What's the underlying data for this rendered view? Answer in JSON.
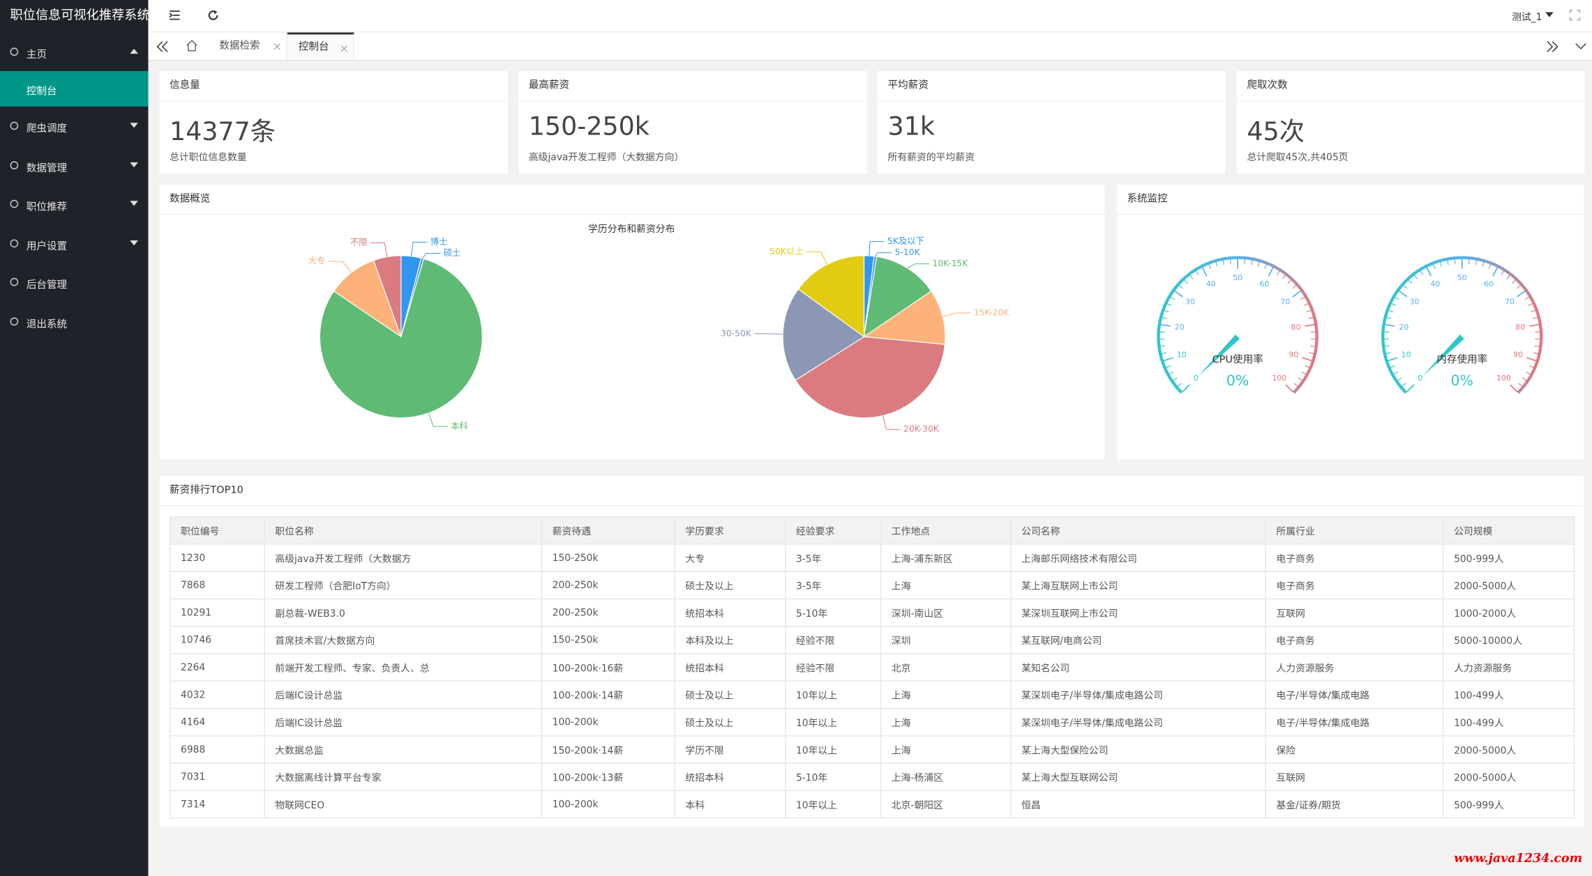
{
  "sidebar": {
    "title": "职位信息可视化推荐系统",
    "menu": [
      {
        "label": "主页",
        "has_submenu": true,
        "children": [
          "控制台"
        ]
      },
      {
        "label": "爬虫调度",
        "has_submenu": true
      },
      {
        "label": "数据管理",
        "has_submenu": true
      },
      {
        "label": "职位推荐",
        "has_submenu": true
      },
      {
        "label": "用户设置",
        "has_submenu": true
      },
      {
        "label": "后台管理",
        "has_submenu": false
      },
      {
        "label": "退出系统",
        "has_submenu": false
      }
    ]
  },
  "topbar": {
    "user": "测试_1"
  },
  "tabs": [
    {
      "label": "数据检索",
      "active": false
    },
    {
      "label": "控制台",
      "active": true
    }
  ],
  "cards": [
    {
      "title": "信息量",
      "value": "14377条",
      "note": "总计职位信息数量"
    },
    {
      "title": "最高薪资",
      "value": "150-250k",
      "note": "高级java开发工程师（大数据方向）"
    },
    {
      "title": "平均薪资",
      "value": "31k",
      "note": "所有薪资的平均薪资"
    },
    {
      "title": "爬取次数",
      "value": "45次",
      "note": "总计爬取45次,共405页"
    }
  ],
  "overview": {
    "title": "数据概览"
  },
  "monitor": {
    "title": "系统监控"
  },
  "chart_data": [
    {
      "type": "pie",
      "title": "学历分布和薪资分布",
      "categories": [
        "博士",
        "硕士",
        "本科",
        "大专",
        "不限"
      ],
      "values": [
        4,
        0.5,
        80,
        10,
        5.5
      ],
      "colors": [
        "#3196f0",
        "#3a9ad6",
        "#5fba74",
        "#fdb27a",
        "#da7b7f"
      ]
    },
    {
      "type": "pie",
      "categories": [
        "5K及以下",
        "5-10K",
        "10K-15K",
        "15K-20K",
        "20K-30K",
        "30-50K",
        "50K以上"
      ],
      "values": [
        2,
        0.5,
        13,
        11,
        39.5,
        19,
        15
      ],
      "colors": [
        "#3196f0",
        "#3a9ad6",
        "#5fba74",
        "#fdb27a",
        "#da7b7f",
        "#8b97b4",
        "#e2cc13"
      ]
    },
    {
      "type": "gauge",
      "title": "CPU使用率",
      "value": 0,
      "value_label": "0%",
      "range": [
        0,
        100
      ],
      "ticks": [
        0,
        10,
        20,
        30,
        40,
        50,
        60,
        70,
        80,
        90,
        100
      ],
      "color": "#2ec7c9"
    },
    {
      "type": "gauge",
      "title": "内存使用率",
      "value": 0,
      "value_label": "0%",
      "range": [
        0,
        100
      ],
      "ticks": [
        0,
        10,
        20,
        30,
        40,
        50,
        60,
        70,
        80,
        90,
        100
      ],
      "color": "#2ec7c9"
    }
  ],
  "table": {
    "title": "薪资排行TOP10",
    "columns": [
      "职位编号",
      "职位名称",
      "薪资待遇",
      "学历要求",
      "经验要求",
      "工作地点",
      "公司名称",
      "所属行业",
      "公司规模"
    ],
    "rows": [
      [
        "1230",
        "高级java开发工程师（大数据方",
        "150-250k",
        "大专",
        "3-5年",
        "上海-浦东新区",
        "上海邮乐网络技术有限公司",
        "电子商务",
        "500-999人"
      ],
      [
        "7868",
        "研发工程师（合肥IoT方向）",
        "200-250k",
        "硕士及以上",
        "3-5年",
        "上海",
        "某上海互联网上市公司",
        "电子商务",
        "2000-5000人"
      ],
      [
        "10291",
        "副总裁-WEB3.0",
        "200-250k",
        "统招本科",
        "5-10年",
        "深圳-南山区",
        "某深圳互联网上市公司",
        "互联网",
        "1000-2000人"
      ],
      [
        "10746",
        "首席技术官/大数据方向",
        "150-250k",
        "本科及以上",
        "经验不限",
        "深圳",
        "某互联网/电商公司",
        "电子商务",
        "5000-10000人"
      ],
      [
        "2264",
        "前端开发工程师、专家、负责人、总",
        "100-200k·16薪",
        "统招本科",
        "经验不限",
        "北京",
        "某知名公司",
        "人力资源服务",
        "人力资源服务"
      ],
      [
        "4032",
        "后端IC设计总监",
        "100-200k·14薪",
        "硕士及以上",
        "10年以上",
        "上海",
        "某深圳电子/半导体/集成电路公司",
        "电子/半导体/集成电路",
        "100-499人"
      ],
      [
        "4164",
        "后端IC设计总监",
        "100-200k",
        "硕士及以上",
        "10年以上",
        "上海",
        "某深圳电子/半导体/集成电路公司",
        "电子/半导体/集成电路",
        "100-499人"
      ],
      [
        "6988",
        "大数据总监",
        "150-200k·14薪",
        "学历不限",
        "10年以上",
        "上海",
        "某上海大型保险公司",
        "保险",
        "2000-5000人"
      ],
      [
        "7031",
        "大数据离线计算平台专家",
        "100-200k·13薪",
        "统招本科",
        "5-10年",
        "上海-杨浦区",
        "某上海大型互联网公司",
        "互联网",
        "2000-5000人"
      ],
      [
        "7314",
        "物联网CEO",
        "100-200k",
        "本科",
        "10年以上",
        "北京-朝阳区",
        "恒昌",
        "基金/证券/期货",
        "500-999人"
      ]
    ]
  },
  "watermark": "www.java1234.com"
}
